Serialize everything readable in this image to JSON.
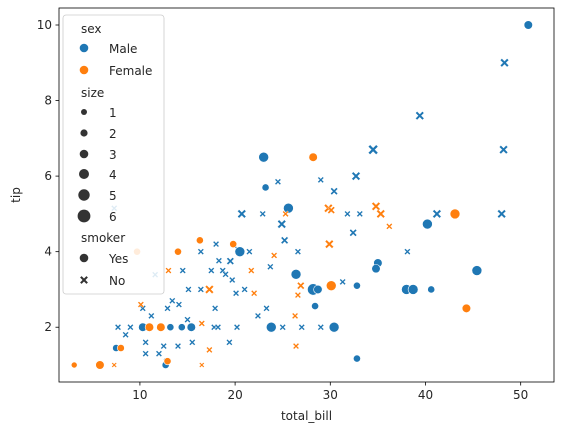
{
  "chart_data": {
    "type": "scatter",
    "xlabel": "total_bill",
    "ylabel": "tip",
    "xlim": [
      1.5,
      53.5
    ],
    "ylim": [
      0.55,
      10.45
    ],
    "xticks": [
      "10",
      "20",
      "30",
      "40",
      "50"
    ],
    "yticks": [
      "2",
      "4",
      "6",
      "8",
      "10"
    ],
    "xtick_values": [
      10,
      20,
      30,
      40,
      50
    ],
    "ytick_values": [
      2,
      4,
      6,
      8,
      10
    ],
    "grid": false,
    "legend_placement": "upper-left",
    "colors": {
      "Male": "#1f77b4",
      "Female": "#ff7f0e"
    },
    "legend": {
      "hue_title": "sex",
      "hue_entries": [
        "Male",
        "Female"
      ],
      "size_title": "size",
      "size_entries": [
        "1",
        "2",
        "3",
        "4",
        "5",
        "6"
      ],
      "style_title": "smoker",
      "style_entries": [
        "Yes",
        "No"
      ]
    },
    "points": [
      {
        "x": 50.8,
        "y": 10.0,
        "sex": "Male",
        "smoker": "Yes",
        "size": 3
      },
      {
        "x": 48.3,
        "y": 9.0,
        "sex": "Male",
        "smoker": "No",
        "size": 4
      },
      {
        "x": 39.4,
        "y": 7.6,
        "sex": "Male",
        "smoker": "No",
        "size": 4
      },
      {
        "x": 48.2,
        "y": 6.7,
        "sex": "Male",
        "smoker": "No",
        "size": 4
      },
      {
        "x": 34.5,
        "y": 6.7,
        "sex": "Male",
        "smoker": "No",
        "size": 5
      },
      {
        "x": 23.0,
        "y": 6.5,
        "sex": "Male",
        "smoker": "Yes",
        "size": 4
      },
      {
        "x": 28.2,
        "y": 6.5,
        "sex": "Female",
        "smoker": "Yes",
        "size": 3
      },
      {
        "x": 32.7,
        "y": 6.0,
        "sex": "Male",
        "smoker": "No",
        "size": 4
      },
      {
        "x": 29.0,
        "y": 5.9,
        "sex": "Male",
        "smoker": "No",
        "size": 2
      },
      {
        "x": 24.5,
        "y": 5.85,
        "sex": "Male",
        "smoker": "No",
        "size": 2
      },
      {
        "x": 23.2,
        "y": 5.7,
        "sex": "Male",
        "smoker": "Yes",
        "size": 2
      },
      {
        "x": 30.4,
        "y": 5.6,
        "sex": "Male",
        "smoker": "No",
        "size": 3
      },
      {
        "x": 7.3,
        "y": 5.15,
        "sex": "Male",
        "smoker": "No",
        "size": 2
      },
      {
        "x": 25.6,
        "y": 5.15,
        "sex": "Male",
        "smoker": "Yes",
        "size": 4
      },
      {
        "x": 29.8,
        "y": 5.15,
        "sex": "Female",
        "smoker": "No",
        "size": 4
      },
      {
        "x": 34.8,
        "y": 5.2,
        "sex": "Female",
        "smoker": "No",
        "size": 4
      },
      {
        "x": 20.7,
        "y": 5.0,
        "sex": "Male",
        "smoker": "No",
        "size": 4
      },
      {
        "x": 22.9,
        "y": 5.0,
        "sex": "Male",
        "smoker": "No",
        "size": 2
      },
      {
        "x": 25.3,
        "y": 5.0,
        "sex": "Female",
        "smoker": "No",
        "size": 2
      },
      {
        "x": 31.8,
        "y": 5.0,
        "sex": "Male",
        "smoker": "No",
        "size": 2
      },
      {
        "x": 33.1,
        "y": 5.0,
        "sex": "Male",
        "smoker": "No",
        "size": 2
      },
      {
        "x": 35.3,
        "y": 5.0,
        "sex": "Female",
        "smoker": "No",
        "size": 4
      },
      {
        "x": 41.2,
        "y": 5.0,
        "sex": "Male",
        "smoker": "No",
        "size": 4
      },
      {
        "x": 43.1,
        "y": 5.0,
        "sex": "Female",
        "smoker": "Yes",
        "size": 4
      },
      {
        "x": 48.0,
        "y": 5.0,
        "sex": "Male",
        "smoker": "No",
        "size": 4
      },
      {
        "x": 30.1,
        "y": 5.1,
        "sex": "Female",
        "smoker": "No",
        "size": 3
      },
      {
        "x": 40.2,
        "y": 4.73,
        "sex": "Male",
        "smoker": "Yes",
        "size": 4
      },
      {
        "x": 24.9,
        "y": 4.73,
        "sex": "Male",
        "smoker": "No",
        "size": 4
      },
      {
        "x": 36.2,
        "y": 4.67,
        "sex": "Female",
        "smoker": "No",
        "size": 2
      },
      {
        "x": 32.4,
        "y": 4.5,
        "sex": "Male",
        "smoker": "No",
        "size": 3
      },
      {
        "x": 25.2,
        "y": 4.3,
        "sex": "Male",
        "smoker": "No",
        "size": 3
      },
      {
        "x": 16.3,
        "y": 4.3,
        "sex": "Female",
        "smoker": "Yes",
        "size": 2
      },
      {
        "x": 29.9,
        "y": 4.2,
        "sex": "Female",
        "smoker": "No",
        "size": 4
      },
      {
        "x": 19.8,
        "y": 4.2,
        "sex": "Female",
        "smoker": "Yes",
        "size": 2
      },
      {
        "x": 18.0,
        "y": 4.2,
        "sex": "Male",
        "smoker": "No",
        "size": 2
      },
      {
        "x": 20.3,
        "y": 4.06,
        "sex": "Male",
        "smoker": "No",
        "size": 2
      },
      {
        "x": 9.7,
        "y": 4.0,
        "sex": "Female",
        "smoker": "Yes",
        "size": 2
      },
      {
        "x": 14.0,
        "y": 4.0,
        "sex": "Female",
        "smoker": "Yes",
        "size": 2
      },
      {
        "x": 20.5,
        "y": 4.0,
        "sex": "Male",
        "smoker": "Yes",
        "size": 4
      },
      {
        "x": 21.5,
        "y": 4.0,
        "sex": "Male",
        "smoker": "No",
        "size": 2
      },
      {
        "x": 26.6,
        "y": 4.0,
        "sex": "Male",
        "smoker": "No",
        "size": 2
      },
      {
        "x": 38.1,
        "y": 4.0,
        "sex": "Male",
        "smoker": "No",
        "size": 2
      },
      {
        "x": 16.4,
        "y": 4.0,
        "sex": "Male",
        "smoker": "No",
        "size": 2
      },
      {
        "x": 24.1,
        "y": 3.9,
        "sex": "Female",
        "smoker": "No",
        "size": 2
      },
      {
        "x": 19.5,
        "y": 3.75,
        "sex": "Male",
        "smoker": "No",
        "size": 3
      },
      {
        "x": 18.3,
        "y": 3.76,
        "sex": "Male",
        "smoker": "No",
        "size": 2
      },
      {
        "x": 35.0,
        "y": 3.7,
        "sex": "Male",
        "smoker": "Yes",
        "size": 3
      },
      {
        "x": 23.7,
        "y": 3.6,
        "sex": "Male",
        "smoker": "No",
        "size": 2
      },
      {
        "x": 17.5,
        "y": 3.5,
        "sex": "Male",
        "smoker": "No",
        "size": 2
      },
      {
        "x": 21.7,
        "y": 3.5,
        "sex": "Female",
        "smoker": "No",
        "size": 2
      },
      {
        "x": 13.0,
        "y": 3.5,
        "sex": "Female",
        "smoker": "No",
        "size": 2
      },
      {
        "x": 45.4,
        "y": 3.5,
        "sex": "Male",
        "smoker": "Yes",
        "size": 4
      },
      {
        "x": 34.8,
        "y": 3.55,
        "sex": "Male",
        "smoker": "Yes",
        "size": 3
      },
      {
        "x": 18.7,
        "y": 3.5,
        "sex": "Male",
        "smoker": "No",
        "size": 2
      },
      {
        "x": 19.0,
        "y": 3.4,
        "sex": "Male",
        "smoker": "No",
        "size": 2
      },
      {
        "x": 26.4,
        "y": 3.4,
        "sex": "Male",
        "smoker": "Yes",
        "size": 4
      },
      {
        "x": 11.6,
        "y": 3.39,
        "sex": "Male",
        "smoker": "No",
        "size": 2
      },
      {
        "x": 14.5,
        "y": 3.5,
        "sex": "Male",
        "smoker": "No",
        "size": 2
      },
      {
        "x": 31.3,
        "y": 3.2,
        "sex": "Male",
        "smoker": "No",
        "size": 2
      },
      {
        "x": 32.8,
        "y": 3.1,
        "sex": "Male",
        "smoker": "Yes",
        "size": 2
      },
      {
        "x": 26.9,
        "y": 3.1,
        "sex": "Female",
        "smoker": "No",
        "size": 3
      },
      {
        "x": 30.1,
        "y": 3.1,
        "sex": "Female",
        "smoker": "Yes",
        "size": 4
      },
      {
        "x": 38.0,
        "y": 3.0,
        "sex": "Male",
        "smoker": "Yes",
        "size": 4
      },
      {
        "x": 38.7,
        "y": 3.0,
        "sex": "Male",
        "smoker": "Yes",
        "size": 4
      },
      {
        "x": 40.6,
        "y": 3.0,
        "sex": "Male",
        "smoker": "Yes",
        "size": 2
      },
      {
        "x": 28.2,
        "y": 3.0,
        "sex": "Male",
        "smoker": "Yes",
        "size": 5
      },
      {
        "x": 28.7,
        "y": 3.0,
        "sex": "Male",
        "smoker": "Yes",
        "size": 3
      },
      {
        "x": 17.3,
        "y": 3.0,
        "sex": "Female",
        "smoker": "No",
        "size": 4
      },
      {
        "x": 16.4,
        "y": 3.0,
        "sex": "Male",
        "smoker": "No",
        "size": 2
      },
      {
        "x": 15.1,
        "y": 3.0,
        "sex": "Male",
        "smoker": "No",
        "size": 2
      },
      {
        "x": 21.0,
        "y": 3.0,
        "sex": "Male",
        "smoker": "No",
        "size": 2
      },
      {
        "x": 22.0,
        "y": 2.9,
        "sex": "Female",
        "smoker": "No",
        "size": 2
      },
      {
        "x": 26.6,
        "y": 2.85,
        "sex": "Female",
        "smoker": "No",
        "size": 2
      },
      {
        "x": 20.1,
        "y": 2.9,
        "sex": "Male",
        "smoker": "No",
        "size": 2
      },
      {
        "x": 19.7,
        "y": 3.25,
        "sex": "Male",
        "smoker": "No",
        "size": 2
      },
      {
        "x": 13.4,
        "y": 2.7,
        "sex": "Male",
        "smoker": "No",
        "size": 2
      },
      {
        "x": 12.9,
        "y": 2.5,
        "sex": "Male",
        "smoker": "No",
        "size": 2
      },
      {
        "x": 14.1,
        "y": 2.6,
        "sex": "Male",
        "smoker": "No",
        "size": 2
      },
      {
        "x": 15.0,
        "y": 2.2,
        "sex": "Male",
        "smoker": "No",
        "size": 2
      },
      {
        "x": 17.9,
        "y": 2.5,
        "sex": "Male",
        "smoker": "No",
        "size": 2
      },
      {
        "x": 23.3,
        "y": 2.5,
        "sex": "Male",
        "smoker": "No",
        "size": 2
      },
      {
        "x": 28.4,
        "y": 2.56,
        "sex": "Male",
        "smoker": "Yes",
        "size": 2
      },
      {
        "x": 26.3,
        "y": 2.3,
        "sex": "Female",
        "smoker": "No",
        "size": 2
      },
      {
        "x": 22.4,
        "y": 2.3,
        "sex": "Male",
        "smoker": "No",
        "size": 2
      },
      {
        "x": 44.3,
        "y": 2.5,
        "sex": "Female",
        "smoker": "Yes",
        "size": 3
      },
      {
        "x": 10.3,
        "y": 2.5,
        "sex": "Male",
        "smoker": "No",
        "size": 2
      },
      {
        "x": 10.1,
        "y": 2.6,
        "sex": "Female",
        "smoker": "No",
        "size": 2
      },
      {
        "x": 11.2,
        "y": 2.3,
        "sex": "Male",
        "smoker": "No",
        "size": 2
      },
      {
        "x": 16.5,
        "y": 2.1,
        "sex": "Female",
        "smoker": "No",
        "size": 2
      },
      {
        "x": 17.8,
        "y": 2.0,
        "sex": "Male",
        "smoker": "No",
        "size": 2
      },
      {
        "x": 10.3,
        "y": 2.0,
        "sex": "Male",
        "smoker": "Yes",
        "size": 3
      },
      {
        "x": 11.0,
        "y": 2.0,
        "sex": "Female",
        "smoker": "Yes",
        "size": 3
      },
      {
        "x": 12.2,
        "y": 2.0,
        "sex": "Female",
        "smoker": "Yes",
        "size": 3
      },
      {
        "x": 13.2,
        "y": 2.0,
        "sex": "Male",
        "smoker": "Yes",
        "size": 2
      },
      {
        "x": 14.4,
        "y": 2.0,
        "sex": "Male",
        "smoker": "Yes",
        "size": 2
      },
      {
        "x": 15.4,
        "y": 2.0,
        "sex": "Male",
        "smoker": "Yes",
        "size": 3
      },
      {
        "x": 23.8,
        "y": 2.0,
        "sex": "Male",
        "smoker": "Yes",
        "size": 4
      },
      {
        "x": 25.0,
        "y": 2.0,
        "sex": "Male",
        "smoker": "No",
        "size": 2
      },
      {
        "x": 27.0,
        "y": 2.0,
        "sex": "Male",
        "smoker": "No",
        "size": 2
      },
      {
        "x": 29.0,
        "y": 2.0,
        "sex": "Male",
        "smoker": "No",
        "size": 2
      },
      {
        "x": 30.4,
        "y": 2.0,
        "sex": "Male",
        "smoker": "Yes",
        "size": 4
      },
      {
        "x": 20.2,
        "y": 2.0,
        "sex": "Male",
        "smoker": "No",
        "size": 2
      },
      {
        "x": 18.2,
        "y": 2.0,
        "sex": "Male",
        "smoker": "No",
        "size": 2
      },
      {
        "x": 9.0,
        "y": 2.0,
        "sex": "Male",
        "smoker": "No",
        "size": 2
      },
      {
        "x": 7.7,
        "y": 2.0,
        "sex": "Male",
        "smoker": "No",
        "size": 2
      },
      {
        "x": 8.5,
        "y": 1.8,
        "sex": "Male",
        "smoker": "No",
        "size": 2
      },
      {
        "x": 10.6,
        "y": 1.6,
        "sex": "Male",
        "smoker": "No",
        "size": 2
      },
      {
        "x": 12.5,
        "y": 1.5,
        "sex": "Male",
        "smoker": "No",
        "size": 2
      },
      {
        "x": 7.5,
        "y": 1.45,
        "sex": "Male",
        "smoker": "Yes",
        "size": 2
      },
      {
        "x": 8.0,
        "y": 1.45,
        "sex": "Female",
        "smoker": "Yes",
        "size": 2
      },
      {
        "x": 10.6,
        "y": 1.3,
        "sex": "Male",
        "smoker": "No",
        "size": 2
      },
      {
        "x": 12.0,
        "y": 1.3,
        "sex": "Male",
        "smoker": "No",
        "size": 2
      },
      {
        "x": 14.0,
        "y": 1.5,
        "sex": "Male",
        "smoker": "No",
        "size": 2
      },
      {
        "x": 15.5,
        "y": 1.6,
        "sex": "Male",
        "smoker": "No",
        "size": 2
      },
      {
        "x": 17.3,
        "y": 1.4,
        "sex": "Female",
        "smoker": "No",
        "size": 2
      },
      {
        "x": 19.4,
        "y": 1.6,
        "sex": "Male",
        "smoker": "No",
        "size": 2
      },
      {
        "x": 26.4,
        "y": 1.5,
        "sex": "Female",
        "smoker": "No",
        "size": 2
      },
      {
        "x": 12.8,
        "y": 1.1,
        "sex": "Male",
        "smoker": "No",
        "size": 2
      },
      {
        "x": 12.7,
        "y": 1.0,
        "sex": "Male",
        "smoker": "Yes",
        "size": 2
      },
      {
        "x": 16.5,
        "y": 1.0,
        "sex": "Female",
        "smoker": "No",
        "size": 1
      },
      {
        "x": 32.8,
        "y": 1.17,
        "sex": "Male",
        "smoker": "Yes",
        "size": 2
      },
      {
        "x": 3.1,
        "y": 1.0,
        "sex": "Female",
        "smoker": "Yes",
        "size": 1
      },
      {
        "x": 5.8,
        "y": 1.0,
        "sex": "Female",
        "smoker": "Yes",
        "size": 3
      },
      {
        "x": 7.3,
        "y": 1.0,
        "sex": "Female",
        "smoker": "No",
        "size": 1
      },
      {
        "x": 12.9,
        "y": 1.1,
        "sex": "Female",
        "smoker": "Yes",
        "size": 2
      }
    ]
  }
}
